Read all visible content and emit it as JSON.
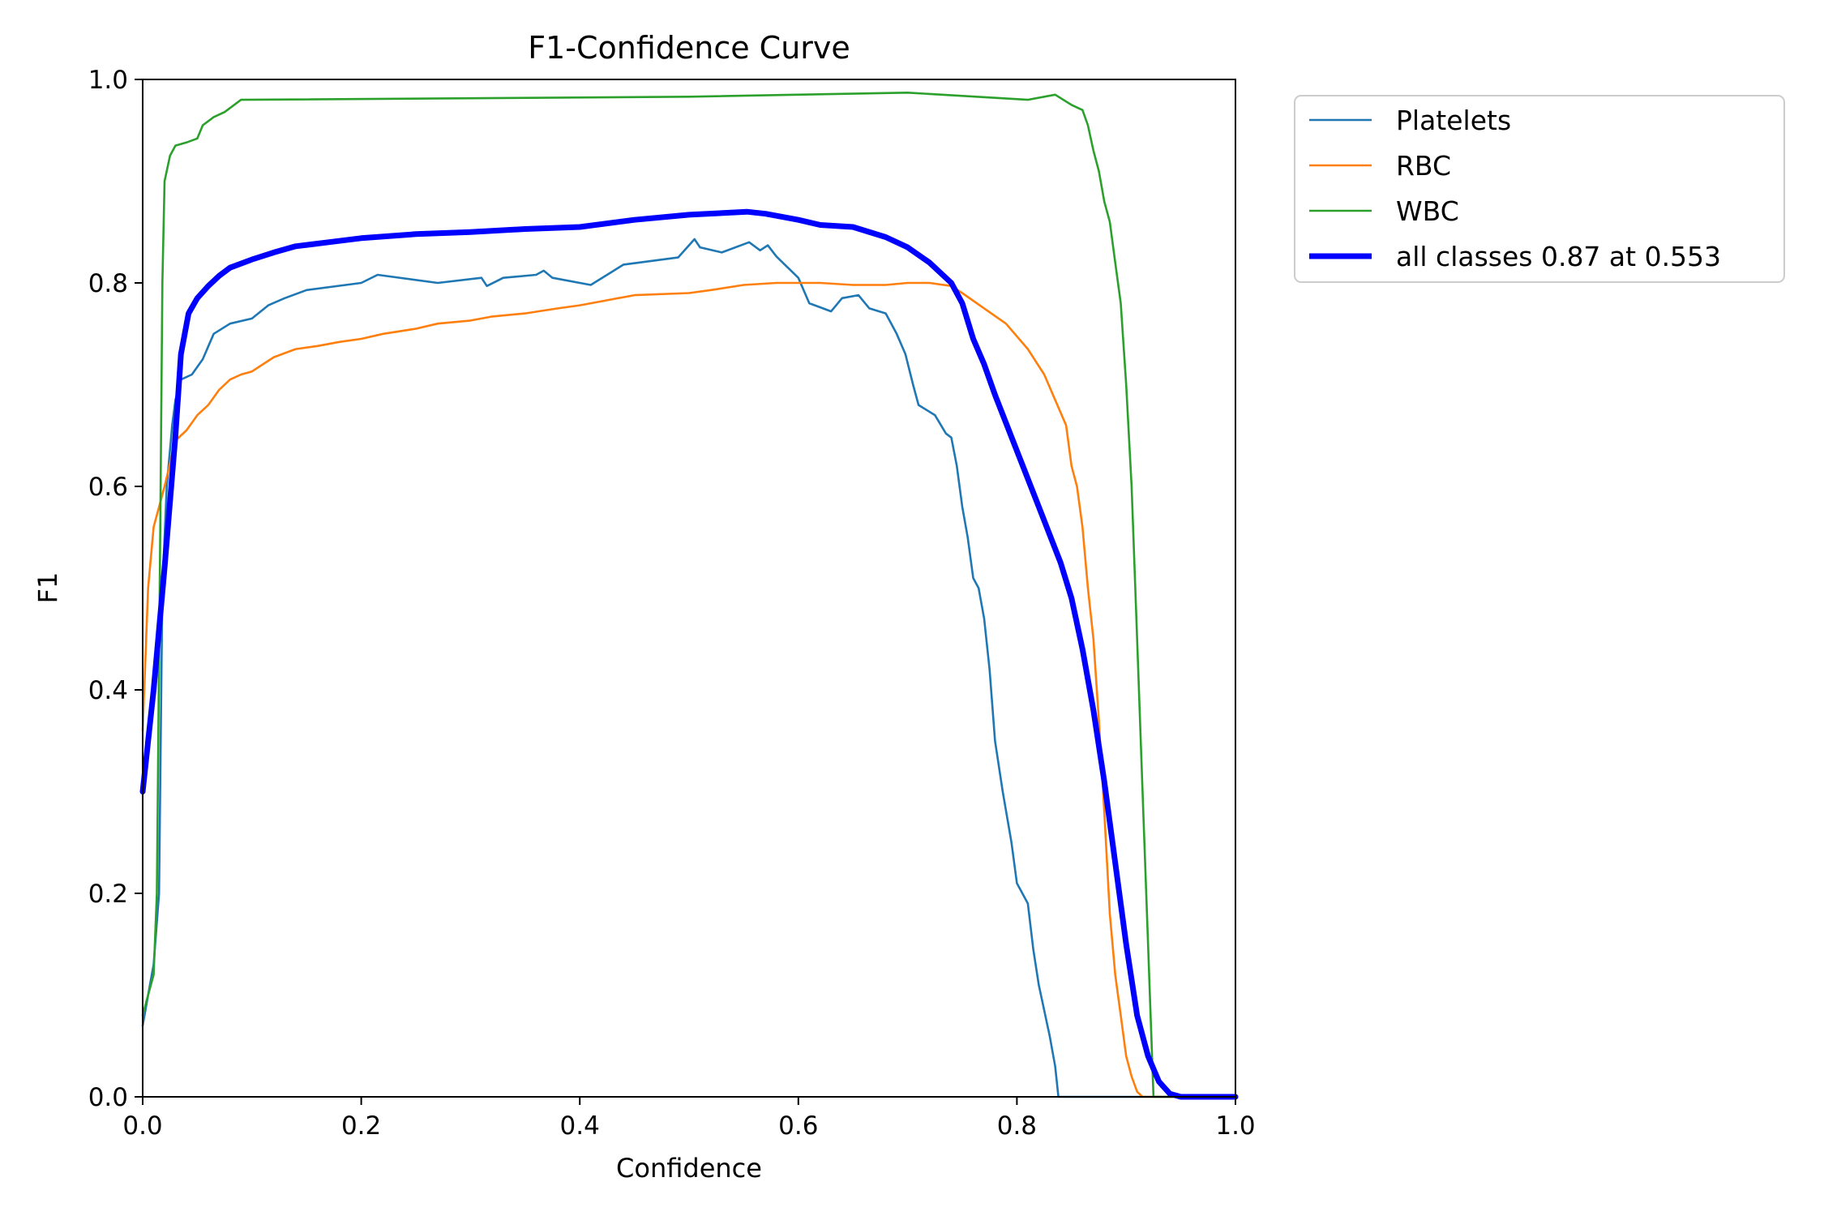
{
  "chart_data": {
    "type": "line",
    "title": "F1-Confidence Curve",
    "xlabel": "Confidence",
    "ylabel": "F1",
    "xlim": [
      0.0,
      1.0
    ],
    "ylim": [
      0.0,
      1.0
    ],
    "xticks": [
      "0.0",
      "0.2",
      "0.4",
      "0.6",
      "0.8",
      "1.0"
    ],
    "yticks": [
      "0.0",
      "0.2",
      "0.4",
      "0.6",
      "0.8",
      "1.0"
    ],
    "grid": false,
    "legend_position": "outside-top-right",
    "series": [
      {
        "name": "Platelets",
        "color": "#1f77b4",
        "width": "thin",
        "points": [
          [
            0,
            0.07
          ],
          [
            0.005,
            0.1
          ],
          [
            0.01,
            0.13
          ],
          [
            0.015,
            0.2
          ],
          [
            0.018,
            0.5
          ],
          [
            0.022,
            0.6
          ],
          [
            0.027,
            0.66
          ],
          [
            0.03,
            0.685
          ],
          [
            0.035,
            0.705
          ],
          [
            0.045,
            0.71
          ],
          [
            0.055,
            0.725
          ],
          [
            0.065,
            0.75
          ],
          [
            0.08,
            0.76
          ],
          [
            0.1,
            0.765
          ],
          [
            0.115,
            0.778
          ],
          [
            0.13,
            0.785
          ],
          [
            0.15,
            0.793
          ],
          [
            0.2,
            0.8
          ],
          [
            0.215,
            0.808
          ],
          [
            0.27,
            0.8
          ],
          [
            0.31,
            0.805
          ],
          [
            0.315,
            0.797
          ],
          [
            0.33,
            0.805
          ],
          [
            0.36,
            0.808
          ],
          [
            0.367,
            0.812
          ],
          [
            0.375,
            0.805
          ],
          [
            0.41,
            0.798
          ],
          [
            0.425,
            0.808
          ],
          [
            0.44,
            0.818
          ],
          [
            0.49,
            0.825
          ],
          [
            0.505,
            0.843
          ],
          [
            0.51,
            0.835
          ],
          [
            0.53,
            0.83
          ],
          [
            0.555,
            0.84
          ],
          [
            0.565,
            0.832
          ],
          [
            0.572,
            0.837
          ],
          [
            0.58,
            0.826
          ],
          [
            0.6,
            0.805
          ],
          [
            0.61,
            0.78
          ],
          [
            0.63,
            0.772
          ],
          [
            0.64,
            0.785
          ],
          [
            0.655,
            0.788
          ],
          [
            0.665,
            0.775
          ],
          [
            0.68,
            0.77
          ],
          [
            0.69,
            0.75
          ],
          [
            0.698,
            0.73
          ],
          [
            0.705,
            0.7
          ],
          [
            0.71,
            0.68
          ],
          [
            0.725,
            0.67
          ],
          [
            0.735,
            0.652
          ],
          [
            0.74,
            0.648
          ],
          [
            0.745,
            0.62
          ],
          [
            0.75,
            0.58
          ],
          [
            0.755,
            0.55
          ],
          [
            0.76,
            0.51
          ],
          [
            0.765,
            0.5
          ],
          [
            0.77,
            0.47
          ],
          [
            0.775,
            0.42
          ],
          [
            0.78,
            0.35
          ],
          [
            0.787,
            0.3
          ],
          [
            0.795,
            0.25
          ],
          [
            0.8,
            0.21
          ],
          [
            0.81,
            0.19
          ],
          [
            0.815,
            0.145
          ],
          [
            0.82,
            0.11
          ],
          [
            0.83,
            0.06
          ],
          [
            0.835,
            0.03
          ],
          [
            0.838,
            0.0
          ],
          [
            1.0,
            0.0
          ]
        ]
      },
      {
        "name": "RBC",
        "color": "#ff7f0e",
        "width": "thin",
        "points": [
          [
            0,
            0.36
          ],
          [
            0.005,
            0.5
          ],
          [
            0.01,
            0.56
          ],
          [
            0.02,
            0.6
          ],
          [
            0.03,
            0.645
          ],
          [
            0.04,
            0.655
          ],
          [
            0.05,
            0.67
          ],
          [
            0.06,
            0.68
          ],
          [
            0.07,
            0.695
          ],
          [
            0.08,
            0.705
          ],
          [
            0.09,
            0.71
          ],
          [
            0.1,
            0.713
          ],
          [
            0.11,
            0.72
          ],
          [
            0.12,
            0.727
          ],
          [
            0.14,
            0.735
          ],
          [
            0.16,
            0.738
          ],
          [
            0.18,
            0.742
          ],
          [
            0.2,
            0.745
          ],
          [
            0.22,
            0.75
          ],
          [
            0.25,
            0.755
          ],
          [
            0.27,
            0.76
          ],
          [
            0.3,
            0.763
          ],
          [
            0.32,
            0.767
          ],
          [
            0.35,
            0.77
          ],
          [
            0.38,
            0.775
          ],
          [
            0.4,
            0.778
          ],
          [
            0.42,
            0.782
          ],
          [
            0.45,
            0.788
          ],
          [
            0.5,
            0.79
          ],
          [
            0.52,
            0.793
          ],
          [
            0.55,
            0.798
          ],
          [
            0.58,
            0.8
          ],
          [
            0.6,
            0.8
          ],
          [
            0.62,
            0.8
          ],
          [
            0.65,
            0.798
          ],
          [
            0.68,
            0.798
          ],
          [
            0.7,
            0.8
          ],
          [
            0.72,
            0.8
          ],
          [
            0.74,
            0.797
          ],
          [
            0.75,
            0.79
          ],
          [
            0.77,
            0.775
          ],
          [
            0.79,
            0.76
          ],
          [
            0.81,
            0.735
          ],
          [
            0.825,
            0.71
          ],
          [
            0.835,
            0.685
          ],
          [
            0.845,
            0.66
          ],
          [
            0.85,
            0.62
          ],
          [
            0.855,
            0.6
          ],
          [
            0.86,
            0.56
          ],
          [
            0.865,
            0.5
          ],
          [
            0.87,
            0.45
          ],
          [
            0.875,
            0.37
          ],
          [
            0.88,
            0.28
          ],
          [
            0.885,
            0.18
          ],
          [
            0.89,
            0.12
          ],
          [
            0.895,
            0.08
          ],
          [
            0.9,
            0.04
          ],
          [
            0.905,
            0.02
          ],
          [
            0.91,
            0.005
          ],
          [
            0.915,
            0.0
          ],
          [
            1.0,
            0.0
          ]
        ]
      },
      {
        "name": "WBC",
        "color": "#2ca02c",
        "width": "thin",
        "points": [
          [
            0,
            0.08
          ],
          [
            0.005,
            0.1
          ],
          [
            0.01,
            0.12
          ],
          [
            0.013,
            0.2
          ],
          [
            0.016,
            0.55
          ],
          [
            0.018,
            0.8
          ],
          [
            0.02,
            0.9
          ],
          [
            0.025,
            0.925
          ],
          [
            0.03,
            0.935
          ],
          [
            0.04,
            0.938
          ],
          [
            0.05,
            0.942
          ],
          [
            0.055,
            0.955
          ],
          [
            0.065,
            0.963
          ],
          [
            0.075,
            0.968
          ],
          [
            0.09,
            0.98
          ],
          [
            0.5,
            0.983
          ],
          [
            0.7,
            0.987
          ],
          [
            0.81,
            0.98
          ],
          [
            0.835,
            0.985
          ],
          [
            0.85,
            0.975
          ],
          [
            0.86,
            0.97
          ],
          [
            0.865,
            0.955
          ],
          [
            0.87,
            0.93
          ],
          [
            0.875,
            0.91
          ],
          [
            0.88,
            0.88
          ],
          [
            0.885,
            0.86
          ],
          [
            0.89,
            0.82
          ],
          [
            0.895,
            0.78
          ],
          [
            0.9,
            0.7
          ],
          [
            0.905,
            0.6
          ],
          [
            0.91,
            0.45
          ],
          [
            0.915,
            0.3
          ],
          [
            0.92,
            0.15
          ],
          [
            0.925,
            0.0
          ],
          [
            1.0,
            0.0
          ]
        ]
      },
      {
        "name": "all classes 0.87 at 0.553",
        "color": "#0000ff",
        "width": "thick",
        "points": [
          [
            0,
            0.3
          ],
          [
            0.01,
            0.4
          ],
          [
            0.02,
            0.52
          ],
          [
            0.03,
            0.65
          ],
          [
            0.035,
            0.73
          ],
          [
            0.042,
            0.77
          ],
          [
            0.05,
            0.785
          ],
          [
            0.06,
            0.797
          ],
          [
            0.07,
            0.807
          ],
          [
            0.08,
            0.815
          ],
          [
            0.1,
            0.823
          ],
          [
            0.12,
            0.83
          ],
          [
            0.14,
            0.836
          ],
          [
            0.17,
            0.84
          ],
          [
            0.2,
            0.844
          ],
          [
            0.25,
            0.848
          ],
          [
            0.3,
            0.85
          ],
          [
            0.35,
            0.853
          ],
          [
            0.4,
            0.855
          ],
          [
            0.45,
            0.862
          ],
          [
            0.5,
            0.867
          ],
          [
            0.553,
            0.87
          ],
          [
            0.57,
            0.868
          ],
          [
            0.6,
            0.862
          ],
          [
            0.62,
            0.857
          ],
          [
            0.65,
            0.855
          ],
          [
            0.68,
            0.845
          ],
          [
            0.7,
            0.835
          ],
          [
            0.72,
            0.82
          ],
          [
            0.74,
            0.8
          ],
          [
            0.75,
            0.78
          ],
          [
            0.76,
            0.745
          ],
          [
            0.77,
            0.72
          ],
          [
            0.78,
            0.69
          ],
          [
            0.8,
            0.635
          ],
          [
            0.82,
            0.58
          ],
          [
            0.84,
            0.525
          ],
          [
            0.85,
            0.49
          ],
          [
            0.86,
            0.44
          ],
          [
            0.87,
            0.38
          ],
          [
            0.88,
            0.31
          ],
          [
            0.89,
            0.23
          ],
          [
            0.9,
            0.15
          ],
          [
            0.91,
            0.08
          ],
          [
            0.92,
            0.04
          ],
          [
            0.93,
            0.015
          ],
          [
            0.94,
            0.003
          ],
          [
            0.95,
            0.0
          ],
          [
            1.0,
            0.0
          ]
        ]
      }
    ]
  }
}
